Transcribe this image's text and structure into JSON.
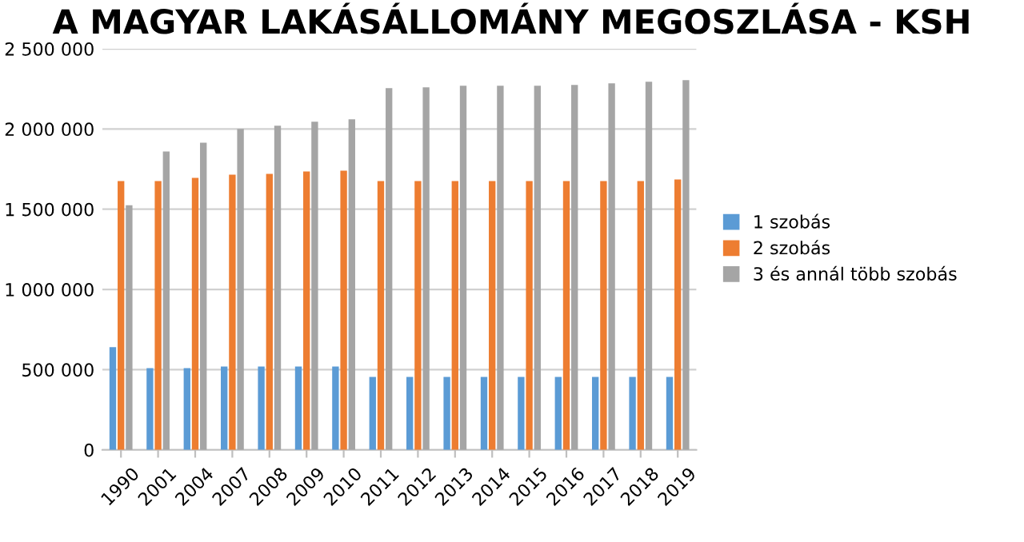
{
  "chart_data": {
    "type": "bar",
    "title": "A MAGYAR LAKÁSÁLLOMÁNY MEGOSZLÁSA - KSH",
    "categories": [
      "1990",
      "2001",
      "2004",
      "2007",
      "2008",
      "2009",
      "2010",
      "2011",
      "2012",
      "2013",
      "2014",
      "2015",
      "2016",
      "2017",
      "2018",
      "2019"
    ],
    "series": [
      {
        "name": "1 szobás",
        "color": "#5b9bd5",
        "values": [
          640000,
          510000,
          510000,
          520000,
          520000,
          520000,
          520000,
          455000,
          455000,
          455000,
          455000,
          455000,
          455000,
          455000,
          455000,
          455000
        ]
      },
      {
        "name": "2 szobás",
        "color": "#ed7d31",
        "values": [
          1675000,
          1675000,
          1695000,
          1715000,
          1720000,
          1735000,
          1740000,
          1675000,
          1675000,
          1675000,
          1675000,
          1675000,
          1675000,
          1675000,
          1675000,
          1685000
        ]
      },
      {
        "name": "3 és annál több szobás",
        "color": "#a5a5a5",
        "values": [
          1525000,
          1860000,
          1915000,
          2000000,
          2020000,
          2045000,
          2060000,
          2255000,
          2260000,
          2270000,
          2270000,
          2270000,
          2275000,
          2285000,
          2295000,
          2305000
        ]
      }
    ],
    "ylim": [
      0,
      2500000
    ],
    "yticks": [
      0,
      {
        "value": 500000,
        "label": "500 000"
      },
      {
        "value": 1000000,
        "label": "1 000 000"
      },
      {
        "value": 1500000,
        "label": "1 500 000"
      },
      {
        "value": 2000000,
        "label": "2 000 000"
      },
      {
        "value": 2500000,
        "label": "2 500 000"
      }
    ],
    "grid": "y",
    "legend": "right"
  }
}
